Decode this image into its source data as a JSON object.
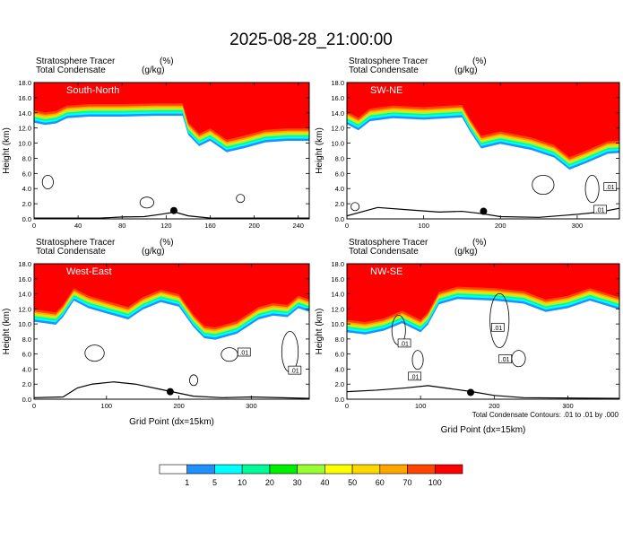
{
  "page_title": "2025-08-28_21:00:00",
  "footnote": "Total Condensate Contours: .01 to .01 by .000",
  "colors": {
    "shade_palette": [
      "#ffffff",
      "#1e90ff",
      "#00ffff",
      "#00fa9a",
      "#00ee00",
      "#9aff32",
      "#ffff00",
      "#ffd700",
      "#ffa500",
      "#ff4500",
      "#ff0000"
    ],
    "contour": "#000000",
    "terrain": "#000000"
  },
  "chart_data": [
    {
      "type": "heatmap",
      "panel_title": "South-North",
      "field_label_1": "Stratosphere Tracer",
      "field_unit_1": "(%)",
      "field_label_2": "Total Condensate",
      "field_unit_2": "(g/kg)",
      "xlabel": "",
      "ylabel": "Height (km)",
      "xlim": [
        0,
        250
      ],
      "ylim": [
        0,
        18
      ],
      "xticks": [
        "0",
        "40",
        "80",
        "120",
        "160",
        "200",
        "240"
      ],
      "xtick_values": [
        0,
        40,
        80,
        120,
        160,
        200,
        240
      ],
      "yticks": [
        "0.0",
        "2.0",
        "4.0",
        "6.0",
        "8.0",
        "10.0",
        "12.0",
        "14.0",
        "16.0",
        "18.0"
      ],
      "ytick_values": [
        0,
        2,
        4,
        6,
        8,
        10,
        12,
        14,
        16,
        18
      ],
      "tracer_base_km": [
        [
          0,
          13.6
        ],
        [
          10,
          13.3
        ],
        [
          20,
          13.5
        ],
        [
          30,
          14.2
        ],
        [
          50,
          14.4
        ],
        [
          80,
          14.4
        ],
        [
          110,
          14.5
        ],
        [
          135,
          14.5
        ],
        [
          140,
          12.0
        ],
        [
          150,
          10.5
        ],
        [
          160,
          11.2
        ],
        [
          175,
          9.7
        ],
        [
          190,
          10.2
        ],
        [
          210,
          11.0
        ],
        [
          230,
          11.2
        ],
        [
          252,
          11.2
        ]
      ],
      "terrain_km": [
        [
          0,
          0.1
        ],
        [
          60,
          0.1
        ],
        [
          80,
          0.25
        ],
        [
          100,
          0.3
        ],
        [
          115,
          0.6
        ],
        [
          128,
          0.9
        ],
        [
          140,
          0.4
        ],
        [
          160,
          0.1
        ],
        [
          252,
          0.1
        ]
      ],
      "marker_point": [
        127,
        1.1
      ],
      "contour_boxes": []
    },
    {
      "type": "heatmap",
      "panel_title": "SW-NE",
      "field_label_1": "Stratosphere Tracer",
      "field_unit_1": "(%)",
      "field_label_2": "Total Condensate",
      "field_unit_2": "(g/kg)",
      "xlabel": "",
      "ylabel": "Height (km)",
      "xlim": [
        0,
        355
      ],
      "ylim": [
        0,
        18
      ],
      "xticks": [
        "0",
        "100",
        "200",
        "300"
      ],
      "xtick_values": [
        0,
        100,
        200,
        300
      ],
      "yticks": [
        "0.0",
        "2.0",
        "4.0",
        "6.0",
        "8.0",
        "10.0",
        "12.0",
        "14.0",
        "16.0",
        "18.0"
      ],
      "ytick_values": [
        0,
        2,
        4,
        6,
        8,
        10,
        12,
        14,
        16,
        18
      ],
      "tracer_base_km": [
        [
          0,
          13.4
        ],
        [
          15,
          12.6
        ],
        [
          30,
          13.8
        ],
        [
          60,
          14.2
        ],
        [
          100,
          14.0
        ],
        [
          150,
          14.3
        ],
        [
          160,
          12.5
        ],
        [
          175,
          10.2
        ],
        [
          200,
          10.8
        ],
        [
          240,
          10.0
        ],
        [
          270,
          9.0
        ],
        [
          290,
          7.4
        ],
        [
          310,
          8.2
        ],
        [
          340,
          9.5
        ],
        [
          355,
          9.6
        ]
      ],
      "terrain_km": [
        [
          0,
          0.4
        ],
        [
          40,
          1.5
        ],
        [
          80,
          1.2
        ],
        [
          120,
          0.9
        ],
        [
          150,
          1.0
        ],
        [
          175,
          0.7
        ],
        [
          200,
          0.3
        ],
        [
          250,
          0.2
        ],
        [
          300,
          0.6
        ],
        [
          330,
          0.9
        ],
        [
          355,
          1.4
        ]
      ],
      "marker_point": [
        178,
        1.0
      ],
      "contour_boxes": [
        {
          "label": ".01",
          "x": 343,
          "y": 4.2
        },
        {
          "label": ".01",
          "x": 330,
          "y": 1.2
        }
      ]
    },
    {
      "type": "heatmap",
      "panel_title": "West-East",
      "field_label_1": "Stratosphere Tracer",
      "field_unit_1": "(%)",
      "field_label_2": "Total Condensate",
      "field_unit_2": "(g/kg)",
      "xlabel": "Grid Point (dx=15km)",
      "ylabel": "Height (km)",
      "xlim": [
        0,
        380
      ],
      "ylim": [
        0,
        18
      ],
      "xticks": [
        "0",
        "100",
        "200",
        "300"
      ],
      "xtick_values": [
        0,
        100,
        200,
        300
      ],
      "yticks": [
        "0.0",
        "2.0",
        "4.0",
        "6.0",
        "8.0",
        "10.0",
        "12.0",
        "14.0",
        "16.0",
        "18.0"
      ],
      "ytick_values": [
        0,
        2,
        4,
        6,
        8,
        10,
        12,
        14,
        16,
        18
      ],
      "tracer_base_km": [
        [
          0,
          11.2
        ],
        [
          30,
          10.8
        ],
        [
          40,
          11.8
        ],
        [
          55,
          14.0
        ],
        [
          75,
          13.0
        ],
        [
          100,
          12.3
        ],
        [
          130,
          11.5
        ],
        [
          150,
          12.8
        ],
        [
          175,
          13.8
        ],
        [
          200,
          13.2
        ],
        [
          220,
          10.5
        ],
        [
          235,
          9.0
        ],
        [
          250,
          8.8
        ],
        [
          280,
          9.6
        ],
        [
          310,
          11.5
        ],
        [
          330,
          12.0
        ],
        [
          350,
          11.8
        ],
        [
          365,
          13.0
        ],
        [
          380,
          12.5
        ]
      ],
      "terrain_km": [
        [
          0,
          0.2
        ],
        [
          40,
          0.3
        ],
        [
          60,
          1.5
        ],
        [
          80,
          2.0
        ],
        [
          110,
          2.3
        ],
        [
          140,
          2.0
        ],
        [
          170,
          1.4
        ],
        [
          190,
          1.0
        ],
        [
          220,
          0.4
        ],
        [
          260,
          0.2
        ],
        [
          300,
          0.3
        ],
        [
          380,
          0.1
        ]
      ],
      "marker_point": [
        188,
        1.0
      ],
      "contour_boxes": [
        {
          "label": ".01",
          "x": 290,
          "y": 6.2
        },
        {
          "label": ".01",
          "x": 360,
          "y": 3.8
        }
      ]
    },
    {
      "type": "heatmap",
      "panel_title": "NW-SE",
      "field_label_1": "Stratosphere Tracer",
      "field_unit_1": "(%)",
      "field_label_2": "Total Condensate",
      "field_unit_2": "(g/kg)",
      "xlabel": "Grid Point (dx=15km)",
      "ylabel": "Height (km)",
      "xlim": [
        0,
        370
      ],
      "ylim": [
        0,
        18
      ],
      "xticks": [
        "0",
        "100",
        "200",
        "300"
      ],
      "xtick_values": [
        0,
        100,
        200,
        300
      ],
      "yticks": [
        "0.0",
        "2.0",
        "4.0",
        "6.0",
        "8.0",
        "10.0",
        "12.0",
        "14.0",
        "16.0",
        "18.0"
      ],
      "ytick_values": [
        0,
        2,
        4,
        6,
        8,
        10,
        12,
        14,
        16,
        18
      ],
      "tracer_base_km": [
        [
          0,
          9.8
        ],
        [
          25,
          9.5
        ],
        [
          50,
          10.0
        ],
        [
          75,
          11.0
        ],
        [
          100,
          9.8
        ],
        [
          110,
          10.8
        ],
        [
          125,
          13.5
        ],
        [
          150,
          14.2
        ],
        [
          200,
          14.0
        ],
        [
          240,
          13.6
        ],
        [
          270,
          12.5
        ],
        [
          300,
          13.0
        ],
        [
          330,
          14.0
        ],
        [
          370,
          12.8
        ]
      ],
      "terrain_km": [
        [
          0,
          1.0
        ],
        [
          40,
          1.2
        ],
        [
          80,
          1.5
        ],
        [
          110,
          1.8
        ],
        [
          140,
          1.4
        ],
        [
          170,
          1.0
        ],
        [
          200,
          0.5
        ],
        [
          240,
          0.2
        ],
        [
          370,
          0.1
        ]
      ],
      "marker_point": [
        168,
        0.9
      ],
      "contour_boxes": [
        {
          "label": ".01",
          "x": 78,
          "y": 7.4
        },
        {
          "label": ".01",
          "x": 92,
          "y": 3.0
        },
        {
          "label": ".01",
          "x": 205,
          "y": 9.5
        },
        {
          "label": ".01",
          "x": 215,
          "y": 5.3
        }
      ]
    }
  ],
  "colorbar": {
    "ticks": [
      "1",
      "5",
      "10",
      "20",
      "30",
      "40",
      "50",
      "60",
      "70",
      "100"
    ]
  }
}
